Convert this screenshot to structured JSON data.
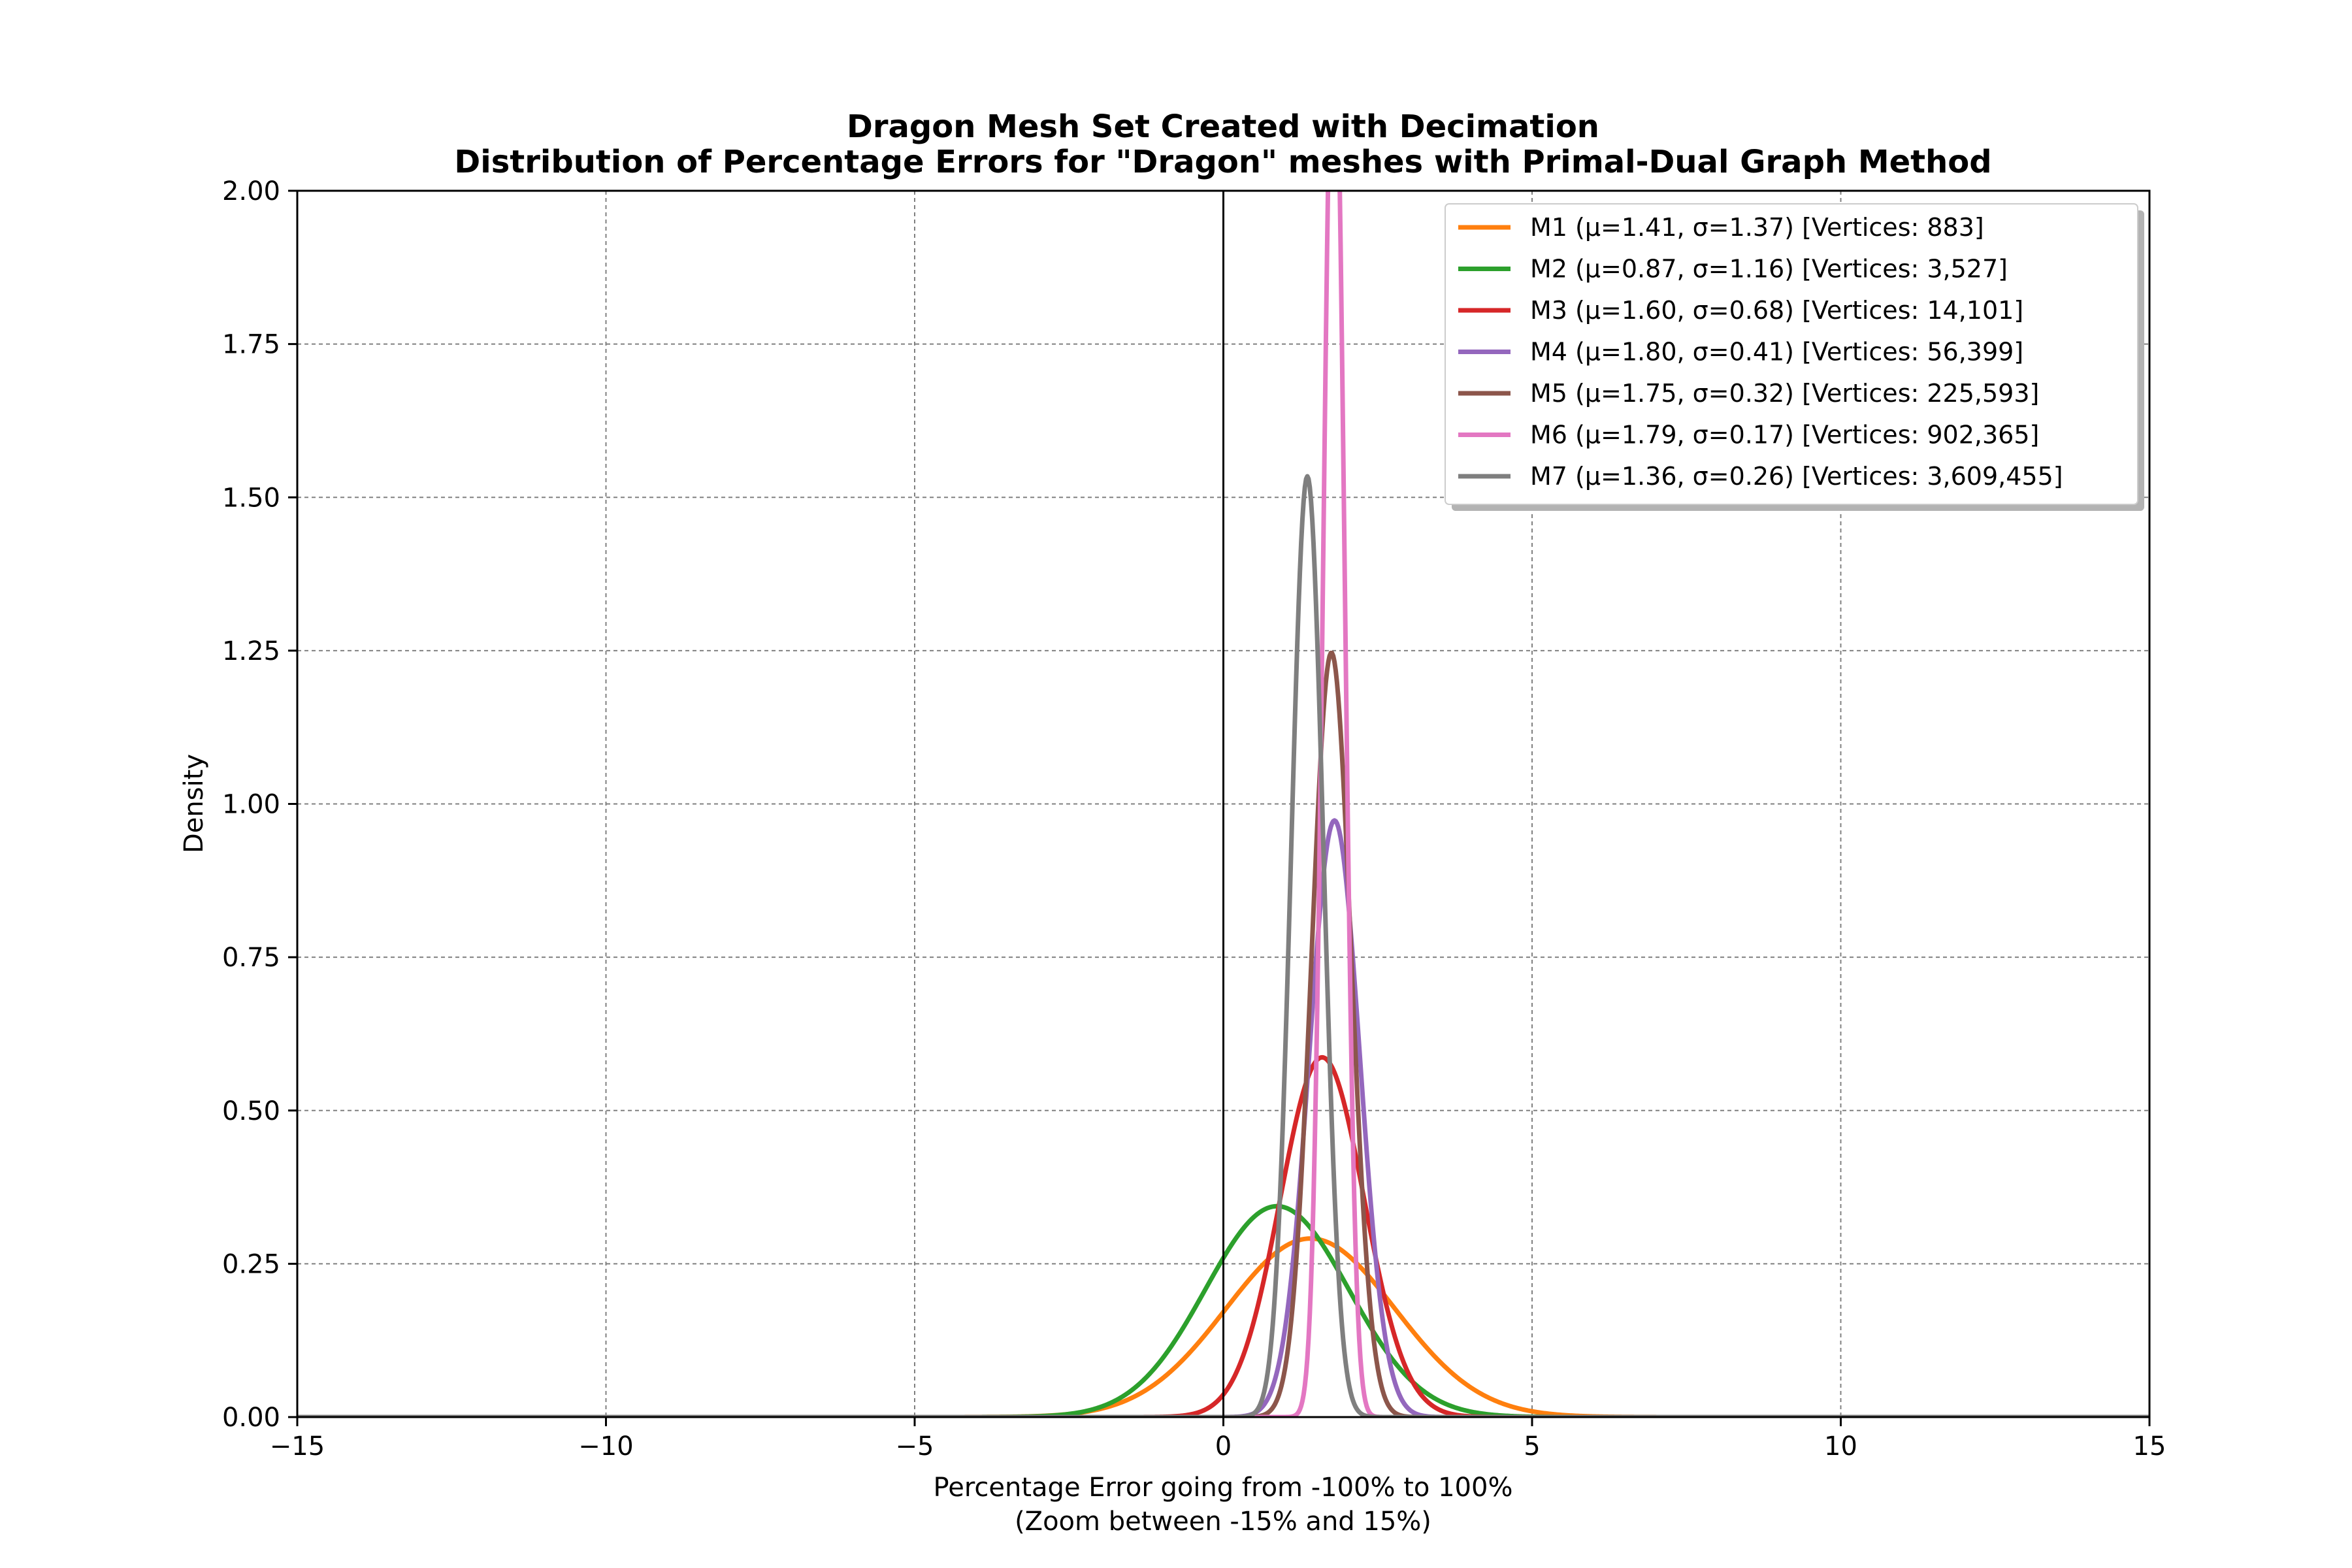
{
  "chart_data": {
    "type": "line",
    "title": "Dragon Mesh Set Created with Decimation",
    "subtitle": "Distribution of Percentage Errors for \"Dragon\" meshes with Primal-Dual Graph Method",
    "xlabel": "Percentage Error going from -100% to 100%",
    "xlabel_sub": "(Zoom between -15% and 15%)",
    "ylabel": "Density",
    "xlim": [
      -15,
      15
    ],
    "ylim": [
      0,
      2
    ],
    "xticks": [
      -15,
      -10,
      -5,
      0,
      5,
      10,
      15
    ],
    "xtick_labels": [
      "−15",
      "−10",
      "−5",
      "0",
      "5",
      "10",
      "15"
    ],
    "yticks": [
      0,
      0.25,
      0.5,
      0.75,
      1.0,
      1.25,
      1.5,
      1.75,
      2.0
    ],
    "ytick_labels": [
      "0.00",
      "0.25",
      "0.50",
      "0.75",
      "1.00",
      "1.25",
      "1.50",
      "1.75",
      "2.00"
    ],
    "grid": true,
    "reference_line_x": 0,
    "legend_position": "top-right",
    "series": [
      {
        "label": "M1 (μ=1.41, σ=1.37) [Vertices: 883]",
        "mu": 1.41,
        "sigma": 1.37,
        "color": "#ff7f0e"
      },
      {
        "label": "M2 (μ=0.87, σ=1.16) [Vertices: 3,527]",
        "mu": 0.87,
        "sigma": 1.16,
        "color": "#2ca02c"
      },
      {
        "label": "M3 (μ=1.60, σ=0.68) [Vertices: 14,101]",
        "mu": 1.6,
        "sigma": 0.68,
        "color": "#d62728"
      },
      {
        "label": "M4 (μ=1.80, σ=0.41) [Vertices: 56,399]",
        "mu": 1.8,
        "sigma": 0.41,
        "color": "#9467bd"
      },
      {
        "label": "M5 (μ=1.75, σ=0.32) [Vertices: 225,593]",
        "mu": 1.75,
        "sigma": 0.32,
        "color": "#8c564b"
      },
      {
        "label": "M6 (μ=1.79, σ=0.17) [Vertices: 902,365]",
        "mu": 1.79,
        "sigma": 0.17,
        "color": "#e377c2"
      },
      {
        "label": "M7 (μ=1.36, σ=0.26) [Vertices: 3,609,455]",
        "mu": 1.36,
        "sigma": 0.26,
        "color": "#7f7f7f"
      }
    ]
  }
}
